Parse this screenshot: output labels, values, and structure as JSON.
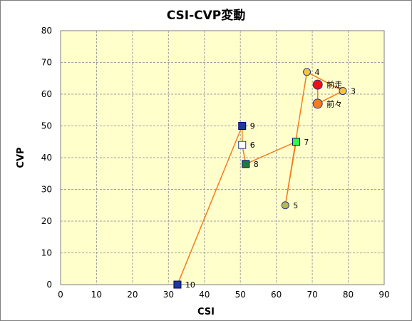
{
  "chart_data": {
    "type": "scatter",
    "title": "CSI-CVP変動",
    "xlabel": "CSI",
    "ylabel": "CVP",
    "xlim": [
      0,
      90
    ],
    "ylim": [
      0,
      80
    ],
    "xticks": [
      0,
      10,
      20,
      30,
      40,
      50,
      60,
      70,
      80,
      90
    ],
    "yticks": [
      0,
      10,
      20,
      30,
      40,
      50,
      60,
      70,
      80
    ],
    "grid": true,
    "plot_background": "#ffffcc",
    "grid_color": "#a0a0a0",
    "line_color": "#f47c20",
    "path_order": [
      "10",
      "9",
      "6",
      "8",
      "7",
      "5",
      "4",
      "3",
      "前々",
      "前走"
    ],
    "points": [
      {
        "label": "10",
        "x": 32.5,
        "y": 0,
        "marker": "square",
        "fill": "#1f3a93",
        "stroke": "#000080"
      },
      {
        "label": "9",
        "x": 50.5,
        "y": 50,
        "marker": "square",
        "fill": "#1f3a93",
        "stroke": "#000080"
      },
      {
        "label": "6",
        "x": 50.5,
        "y": 44,
        "marker": "square",
        "fill": "#ffffff",
        "stroke": "#1f3a93"
      },
      {
        "label": "8",
        "x": 51.5,
        "y": 38,
        "marker": "square",
        "fill": "#1e7a3c",
        "stroke": "#000080"
      },
      {
        "label": "7",
        "x": 65.5,
        "y": 45,
        "marker": "square",
        "fill": "#33ff33",
        "stroke": "#000080"
      },
      {
        "label": "5",
        "x": 62.5,
        "y": 25,
        "marker": "circle",
        "fill": "#b8b850",
        "stroke": "#1f3a93"
      },
      {
        "label": "4",
        "x": 68.5,
        "y": 67,
        "marker": "circle",
        "fill": "#f5c242",
        "stroke": "#1f3a93"
      },
      {
        "label": "3",
        "x": 78.5,
        "y": 61,
        "marker": "circle",
        "fill": "#f5c242",
        "stroke": "#1f3a93"
      },
      {
        "label": "前々",
        "x": 71.5,
        "y": 57,
        "marker": "circle-large",
        "fill": "#f47c20",
        "stroke": "#1f3a93"
      },
      {
        "label": "前走",
        "x": 71.5,
        "y": 63,
        "marker": "circle-large",
        "fill": "#ee1111",
        "stroke": "#1f3a93"
      }
    ]
  }
}
